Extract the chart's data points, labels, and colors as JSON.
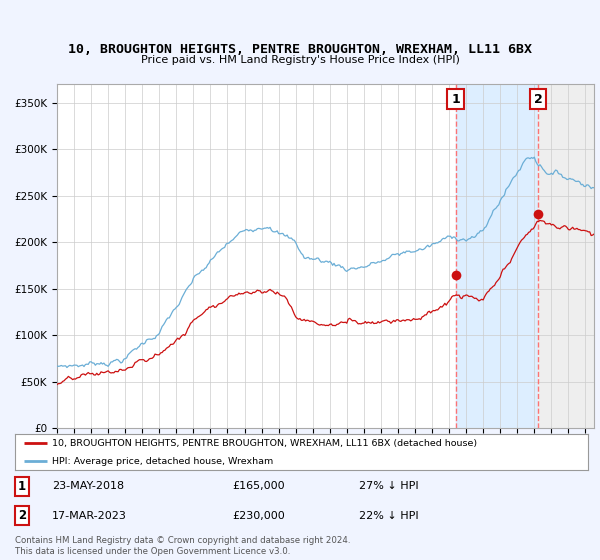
{
  "title": "10, BROUGHTON HEIGHTS, PENTRE BROUGHTON, WREXHAM, LL11 6BX",
  "subtitle": "Price paid vs. HM Land Registry's House Price Index (HPI)",
  "ylabel_ticks": [
    "£0",
    "£50K",
    "£100K",
    "£150K",
    "£200K",
    "£250K",
    "£300K",
    "£350K"
  ],
  "ytick_vals": [
    0,
    50000,
    100000,
    150000,
    200000,
    250000,
    300000,
    350000
  ],
  "ylim": [
    0,
    370000
  ],
  "xlim_start": 1995.0,
  "xlim_end": 2026.5,
  "hpi_color": "#6baed6",
  "price_color": "#cc1111",
  "marker1_date": 2018.38,
  "marker2_date": 2023.21,
  "marker1_price": 165000,
  "marker2_price": 230000,
  "sale1_label": "23-MAY-2018",
  "sale1_price_label": "£165,000",
  "sale1_hpi_label": "27% ↓ HPI",
  "sale2_label": "17-MAR-2023",
  "sale2_price_label": "£230,000",
  "sale2_hpi_label": "22% ↓ HPI",
  "legend_property": "10, BROUGHTON HEIGHTS, PENTRE BROUGHTON, WREXHAM, LL11 6BX (detached house)",
  "legend_hpi": "HPI: Average price, detached house, Wrexham",
  "footnote": "Contains HM Land Registry data © Crown copyright and database right 2024.\nThis data is licensed under the Open Government Licence v3.0.",
  "background_color": "#f0f4ff",
  "plot_bg_color": "#ffffff",
  "shade_color": "#ddeeff",
  "grid_color": "#cccccc"
}
